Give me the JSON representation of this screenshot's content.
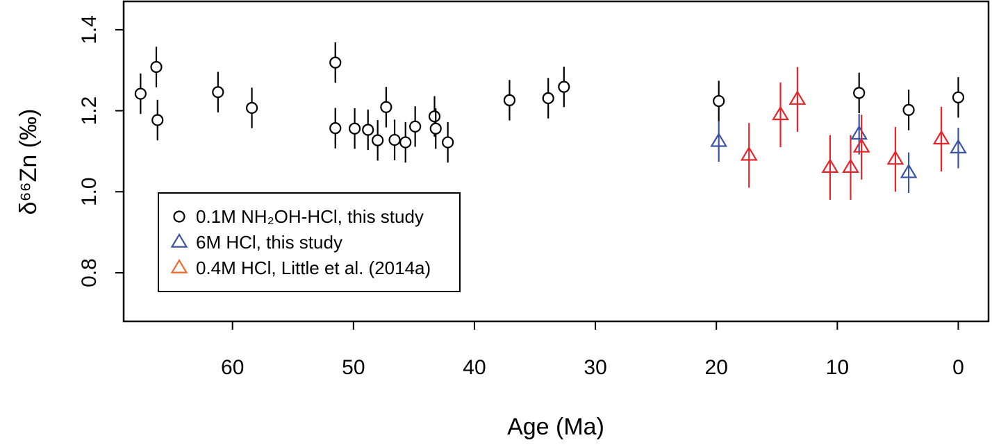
{
  "chart_data": {
    "type": "scatter",
    "xlabel": "Age (Ma)",
    "ylabel": "δ⁶⁶Zn (‰)",
    "xlim": [
      69,
      -2.5
    ],
    "ylim": [
      0.68,
      1.47
    ],
    "x_ticks": [
      60,
      50,
      40,
      30,
      20,
      10,
      0
    ],
    "y_ticks": [
      1.4,
      1.2,
      1.0,
      0.8
    ],
    "grid": false,
    "legend_position": "bottom-left",
    "series": [
      {
        "name": "0.1M NH₂OH-HCl, this study",
        "marker": "circle",
        "color": "#000000",
        "points": [
          {
            "x": 67.6,
            "y": 1.242,
            "err": 0.05
          },
          {
            "x": 66.3,
            "y": 1.308,
            "err": 0.05
          },
          {
            "x": 66.2,
            "y": 1.177,
            "err": 0.05
          },
          {
            "x": 61.2,
            "y": 1.246,
            "err": 0.05
          },
          {
            "x": 58.4,
            "y": 1.207,
            "err": 0.05
          },
          {
            "x": 51.5,
            "y": 1.319,
            "err": 0.05
          },
          {
            "x": 51.5,
            "y": 1.157,
            "err": 0.05
          },
          {
            "x": 49.9,
            "y": 1.156,
            "err": 0.05
          },
          {
            "x": 48.8,
            "y": 1.153,
            "err": 0.05
          },
          {
            "x": 48.0,
            "y": 1.127,
            "err": 0.05
          },
          {
            "x": 47.3,
            "y": 1.209,
            "err": 0.05
          },
          {
            "x": 46.6,
            "y": 1.128,
            "err": 0.05
          },
          {
            "x": 45.7,
            "y": 1.122,
            "err": 0.05
          },
          {
            "x": 44.9,
            "y": 1.161,
            "err": 0.05
          },
          {
            "x": 43.3,
            "y": 1.186,
            "err": 0.05
          },
          {
            "x": 43.2,
            "y": 1.156,
            "err": 0.05
          },
          {
            "x": 42.2,
            "y": 1.122,
            "err": 0.05
          },
          {
            "x": 37.1,
            "y": 1.226,
            "err": 0.05
          },
          {
            "x": 33.9,
            "y": 1.231,
            "err": 0.05
          },
          {
            "x": 32.6,
            "y": 1.259,
            "err": 0.05
          },
          {
            "x": 19.8,
            "y": 1.224,
            "err": 0.05
          },
          {
            "x": 8.2,
            "y": 1.244,
            "err": 0.05
          },
          {
            "x": 4.1,
            "y": 1.202,
            "err": 0.05
          },
          {
            "x": 0.0,
            "y": 1.233,
            "err": 0.05
          }
        ]
      },
      {
        "name": "6M HCl, this study",
        "marker": "triangle",
        "color": "#3a53a4",
        "points": [
          {
            "x": 19.8,
            "y": 1.124,
            "err": 0.05
          },
          {
            "x": 8.2,
            "y": 1.142,
            "err": 0.05
          },
          {
            "x": 4.1,
            "y": 1.047,
            "err": 0.05
          },
          {
            "x": 0.0,
            "y": 1.108,
            "err": 0.05
          }
        ]
      },
      {
        "name": "0.4M HCl, Little et al. (2014a)",
        "marker": "triangle",
        "color": "#e2262b",
        "legend_color": "#ef6a2b",
        "points": [
          {
            "x": 17.3,
            "y": 1.09,
            "err": 0.08
          },
          {
            "x": 14.7,
            "y": 1.19,
            "err": 0.08
          },
          {
            "x": 13.3,
            "y": 1.228,
            "err": 0.08
          },
          {
            "x": 10.6,
            "y": 1.06,
            "err": 0.08
          },
          {
            "x": 8.9,
            "y": 1.06,
            "err": 0.08
          },
          {
            "x": 8.0,
            "y": 1.11,
            "err": 0.08
          },
          {
            "x": 5.2,
            "y": 1.08,
            "err": 0.08
          },
          {
            "x": 1.4,
            "y": 1.13,
            "err": 0.08
          }
        ]
      }
    ]
  }
}
